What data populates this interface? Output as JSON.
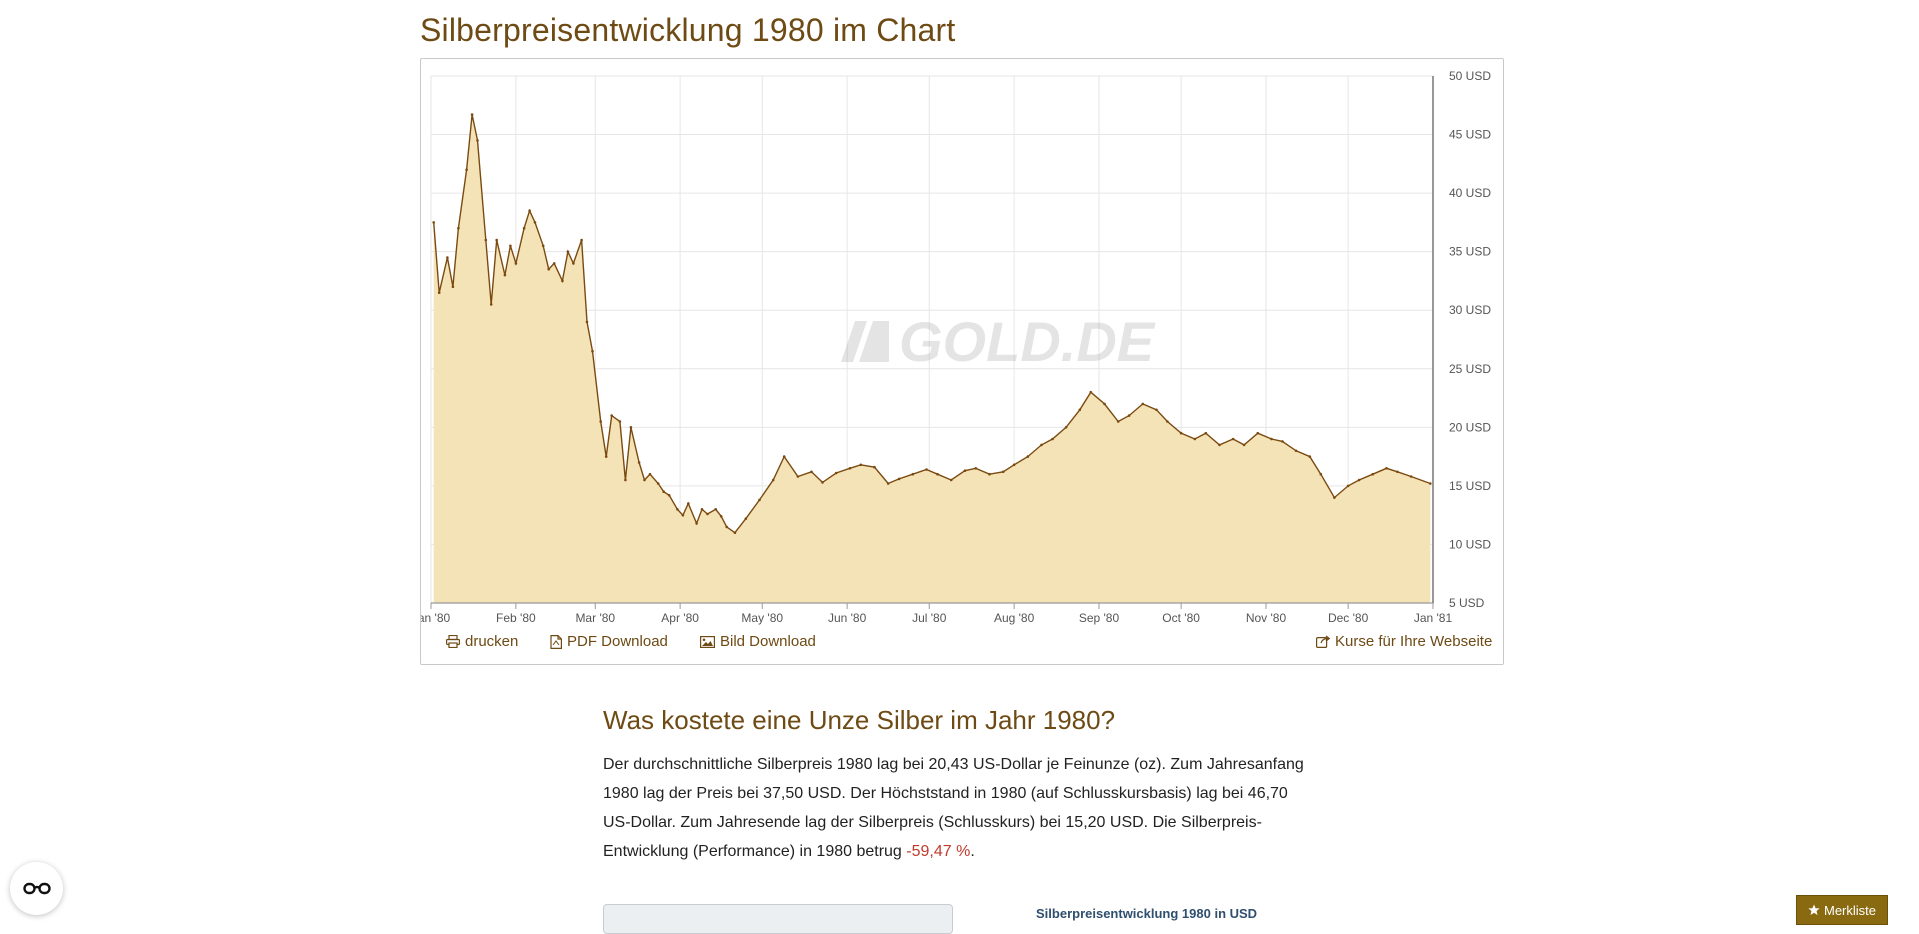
{
  "title": "Silberpreisentwicklung 1980 im Chart",
  "watermark": "GOLD.DE",
  "toolbar": {
    "print": "drucken",
    "pdf": "PDF Download",
    "image": "Bild Download",
    "embed": "Kurse für Ihre Webseite"
  },
  "section": {
    "heading": "Was kostete eine Unze Silber im Jahr 1980?",
    "text_before": "Der durchschnittliche Silberpreis 1980 lag bei 20,43 US-Dollar je Feinunze (oz). Zum Jahresanfang 1980 lag der Preis bei 37,50 USD. Der Höchststand in 1980 (auf Schlusskursbasis) lag bei 46,70 US-Dollar. Zum Jahresende lag der Silberpreis (Schlusskurs) bei 15,20 USD. Die Silberpreis-Entwicklung (Performance) in 1980 betrug ",
    "performance": "-59,47 %",
    "text_after": "."
  },
  "mini_chart_title": "Silberpreisentwicklung 1980 in USD",
  "merkliste_label": "Merkliste",
  "colors": {
    "line": "#7a4a10",
    "fill": "#f5e3b8",
    "title": "#6e4a14",
    "negative": "#c0392b"
  },
  "chart_data": {
    "type": "area",
    "title": "Silberpreisentwicklung 1980 im Chart",
    "x_ticks": [
      "Jan '80",
      "Feb '80",
      "Mar '80",
      "Apr '80",
      "May '80",
      "Jun '80",
      "Jul '80",
      "Aug '80",
      "Sep '80",
      "Oct '80",
      "Nov '80",
      "Dec '80",
      "Jan '81"
    ],
    "y_ticks": [
      "5 USD",
      "10 USD",
      "15 USD",
      "20 USD",
      "25 USD",
      "30 USD",
      "35 USD",
      "40 USD",
      "45 USD",
      "50 USD"
    ],
    "ylim": [
      5,
      50
    ],
    "xlim": [
      "1980-01-01",
      "1981-01-01"
    ],
    "y_axis_side": "right",
    "grid": true,
    "series": [
      {
        "x": [
          "1980-01-02",
          "1980-01-04",
          "1980-01-07",
          "1980-01-09",
          "1980-01-11",
          "1980-01-14",
          "1980-01-16",
          "1980-01-18",
          "1980-01-21",
          "1980-01-23",
          "1980-01-25",
          "1980-01-28",
          "1980-01-30",
          "1980-02-01",
          "1980-02-04",
          "1980-02-06",
          "1980-02-08",
          "1980-02-11",
          "1980-02-13",
          "1980-02-15",
          "1980-02-18",
          "1980-02-20",
          "1980-02-22",
          "1980-02-25",
          "1980-02-27",
          "1980-02-29",
          "1980-03-03",
          "1980-03-05",
          "1980-03-07",
          "1980-03-10",
          "1980-03-12",
          "1980-03-14",
          "1980-03-17",
          "1980-03-19",
          "1980-03-21",
          "1980-03-24",
          "1980-03-26",
          "1980-03-28",
          "1980-03-31",
          "1980-04-02",
          "1980-04-04",
          "1980-04-07",
          "1980-04-09",
          "1980-04-11",
          "1980-04-14",
          "1980-04-16",
          "1980-04-18",
          "1980-04-21",
          "1980-04-25",
          "1980-04-30",
          "1980-05-05",
          "1980-05-09",
          "1980-05-14",
          "1980-05-19",
          "1980-05-23",
          "1980-05-28",
          "1980-06-02",
          "1980-06-06",
          "1980-06-11",
          "1980-06-16",
          "1980-06-20",
          "1980-06-25",
          "1980-06-30",
          "1980-07-04",
          "1980-07-09",
          "1980-07-14",
          "1980-07-18",
          "1980-07-23",
          "1980-07-28",
          "1980-08-01",
          "1980-08-06",
          "1980-08-11",
          "1980-08-15",
          "1980-08-20",
          "1980-08-25",
          "1980-08-29",
          "1980-09-03",
          "1980-09-08",
          "1980-09-12",
          "1980-09-17",
          "1980-09-22",
          "1980-09-26",
          "1980-10-01",
          "1980-10-06",
          "1980-10-10",
          "1980-10-15",
          "1980-10-20",
          "1980-10-24",
          "1980-10-29",
          "1980-11-03",
          "1980-11-07",
          "1980-11-12",
          "1980-11-17",
          "1980-11-21",
          "1980-11-26",
          "1980-12-01",
          "1980-12-05",
          "1980-12-10",
          "1980-12-15",
          "1980-12-19",
          "1980-12-24",
          "1980-12-31"
        ],
        "y": [
          37.5,
          31.5,
          34.5,
          32.0,
          37.0,
          42.0,
          46.7,
          44.5,
          36.0,
          30.5,
          36.0,
          33.0,
          35.5,
          34.0,
          37.0,
          38.5,
          37.5,
          35.5,
          33.5,
          34.0,
          32.5,
          35.0,
          34.0,
          36.0,
          29.0,
          26.5,
          20.5,
          17.5,
          21.0,
          20.5,
          15.5,
          20.0,
          17.0,
          15.5,
          16.0,
          15.2,
          14.5,
          14.2,
          13.0,
          12.5,
          13.5,
          11.8,
          13.0,
          12.6,
          13.0,
          12.4,
          11.5,
          11.0,
          12.2,
          13.8,
          15.5,
          17.5,
          15.8,
          16.2,
          15.3,
          16.1,
          16.5,
          16.8,
          16.6,
          15.2,
          15.6,
          16.0,
          16.4,
          16.0,
          15.5,
          16.3,
          16.5,
          16.0,
          16.2,
          16.8,
          17.5,
          18.5,
          19.0,
          20.0,
          21.5,
          23.0,
          22.0,
          20.5,
          21.0,
          22.0,
          21.5,
          20.5,
          19.5,
          19.0,
          19.5,
          18.5,
          19.0,
          18.5,
          19.5,
          19.0,
          18.8,
          18.0,
          17.5,
          16.0,
          14.0,
          15.0,
          15.5,
          16.0,
          16.5,
          16.2,
          15.8,
          15.2
        ]
      }
    ]
  }
}
